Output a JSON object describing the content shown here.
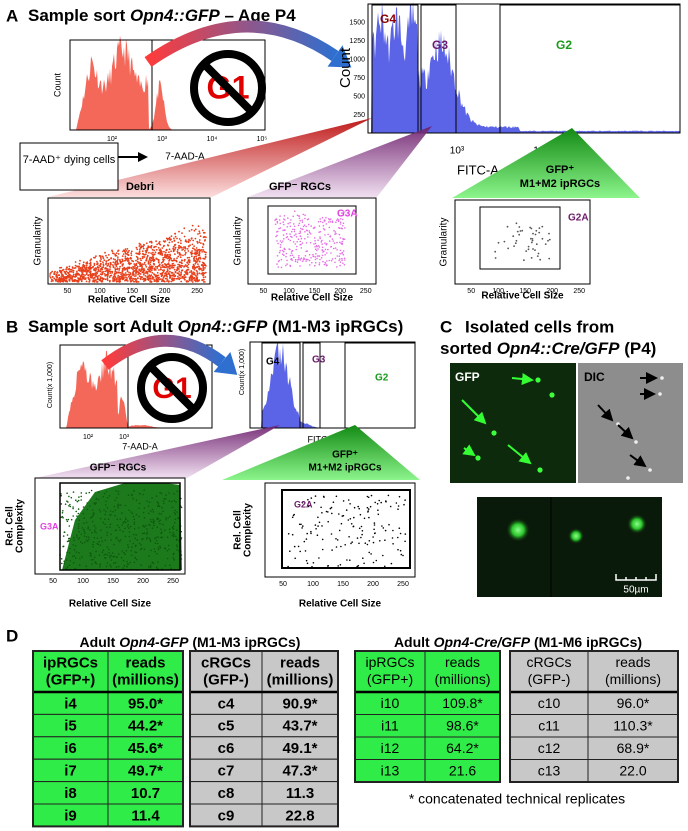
{
  "panel_a": {
    "label": "A",
    "title": [
      "Sample sort ",
      "Opn4::GFP",
      " – Age P4"
    ],
    "viability_histogram": {
      "y_label": "Count",
      "x_label": "7-AAD-A",
      "x_ticks": [
        "10²",
        "10³",
        "10⁴",
        "10⁵"
      ],
      "excluded_gate": "G1"
    },
    "gfp_histogram": {
      "y_label": "Count",
      "x_label": "FITC-A",
      "y_ticks": [
        "250",
        "500",
        "750",
        "1000",
        "1250",
        "1500"
      ],
      "x_ticks": [
        "10³",
        "10⁴"
      ],
      "gates": [
        "G4",
        "G3",
        "G2"
      ]
    },
    "dying_cells": "7-AAD⁺ dying cells",
    "populations": {
      "debris": "Debri",
      "gfp_negative": "GFP⁻ RGCs",
      "gfp_positive": [
        "GFP⁺",
        "M1+M2 ipRGCs"
      ]
    },
    "scatter_plots": [
      {
        "y_label": "Granularity",
        "x_label": "Relative Cell Size",
        "x_ticks": [
          "50",
          "100",
          "150",
          "200",
          "250"
        ]
      },
      {
        "y_label": "Granularity",
        "x_label": "Relative Cell Size",
        "x_ticks": [
          "50",
          "100",
          "150",
          "200",
          "250"
        ],
        "gate": "G3A"
      },
      {
        "y_label": "Granularity",
        "x_label": "Relative Cell Size",
        "x_ticks": [
          "50",
          "100",
          "150",
          "200",
          "250"
        ],
        "gate": "G2A"
      }
    ]
  },
  "panel_b": {
    "label": "B",
    "title": [
      "Sample sort Adult ",
      "Opn4::GFP",
      " (M1-M3 ipRGCs)"
    ],
    "viability_histogram": {
      "y_label": "Count(x 1,000)",
      "x_label": "7-AAD-A",
      "x_ticks": [
        "10²",
        "10³"
      ],
      "excluded_gate": "G1"
    },
    "gfp_histogram": {
      "y_label": "Count(x 1,000)",
      "x_label": "FITC-A",
      "gates": [
        "G4",
        "G3",
        "G2"
      ]
    },
    "populations": {
      "gfp_negative": "GFP⁻ RGCs",
      "gfp_positive": [
        "GFP⁺",
        "M1+M2 ipRGCs"
      ]
    },
    "scatter_plots": [
      {
        "y_label": [
          "Rel. Cell",
          "Complexity"
        ],
        "x_label": "Relative Cell Size",
        "x_ticks": [
          "50",
          "100",
          "150",
          "200",
          "250"
        ],
        "gate": "G3A"
      },
      {
        "y_label": [
          "Rel. Cell",
          "Complexity"
        ],
        "x_label": "Relative Cell Size",
        "x_ticks": [
          "50",
          "100",
          "150",
          "200",
          "250"
        ],
        "gate": "G2A"
      }
    ]
  },
  "panel_c": {
    "label": "C",
    "title": [
      "Isolated cells from",
      "sorted ",
      "Opn4::Cre/GFP",
      " (P4)"
    ],
    "channels": [
      "GFP",
      "DIC"
    ],
    "scale_bar": "50µm"
  },
  "panel_d": {
    "label": "D",
    "tables": [
      {
        "title": [
          "Adult ",
          "Opn4-GFP",
          " (M1-M3 ipRGCs)"
        ],
        "blocks": [
          {
            "header": [
              [
                "ipRGCs",
                "(GFP+)"
              ],
              [
                "reads",
                "(millions)"
              ]
            ],
            "rows": [
              [
                "i4",
                "95.0*"
              ],
              [
                "i5",
                "44.2*"
              ],
              [
                "i6",
                "45.6*"
              ],
              [
                "i7",
                "49.7*"
              ],
              [
                "i8",
                "10.7"
              ],
              [
                "i9",
                "11.4"
              ]
            ]
          },
          {
            "header": [
              [
                "cRGCs",
                "(GFP-)"
              ],
              [
                "reads",
                "(millions)"
              ]
            ],
            "rows": [
              [
                "c4",
                "90.9*"
              ],
              [
                "c5",
                "43.7*"
              ],
              [
                "c6",
                "49.1*"
              ],
              [
                "c7",
                "47.3*"
              ],
              [
                "c8",
                "11.3"
              ],
              [
                "c9",
                "22.8"
              ]
            ]
          }
        ]
      },
      {
        "title": [
          "Adult ",
          "Opn4-Cre/GFP",
          " (M1-M6 ipRGCs)"
        ],
        "blocks": [
          {
            "header": [
              [
                "ipRGCs",
                "(GFP+)"
              ],
              [
                "reads",
                "(millions)"
              ]
            ],
            "rows": [
              [
                "i10",
                "109.8*"
              ],
              [
                "i11",
                "98.6*"
              ],
              [
                "i12",
                "64.2*"
              ],
              [
                "i13",
                "21.6"
              ]
            ]
          },
          {
            "header": [
              [
                "cRGCs",
                "(GFP-)"
              ],
              [
                "reads",
                "(millions)"
              ]
            ],
            "rows": [
              [
                "c10",
                "96.0*"
              ],
              [
                "c11",
                "110.3*"
              ],
              [
                "c12",
                "68.9*"
              ],
              [
                "c13",
                "22.0"
              ]
            ]
          }
        ],
        "footnote": "* concatenated technical replicates"
      }
    ]
  }
}
